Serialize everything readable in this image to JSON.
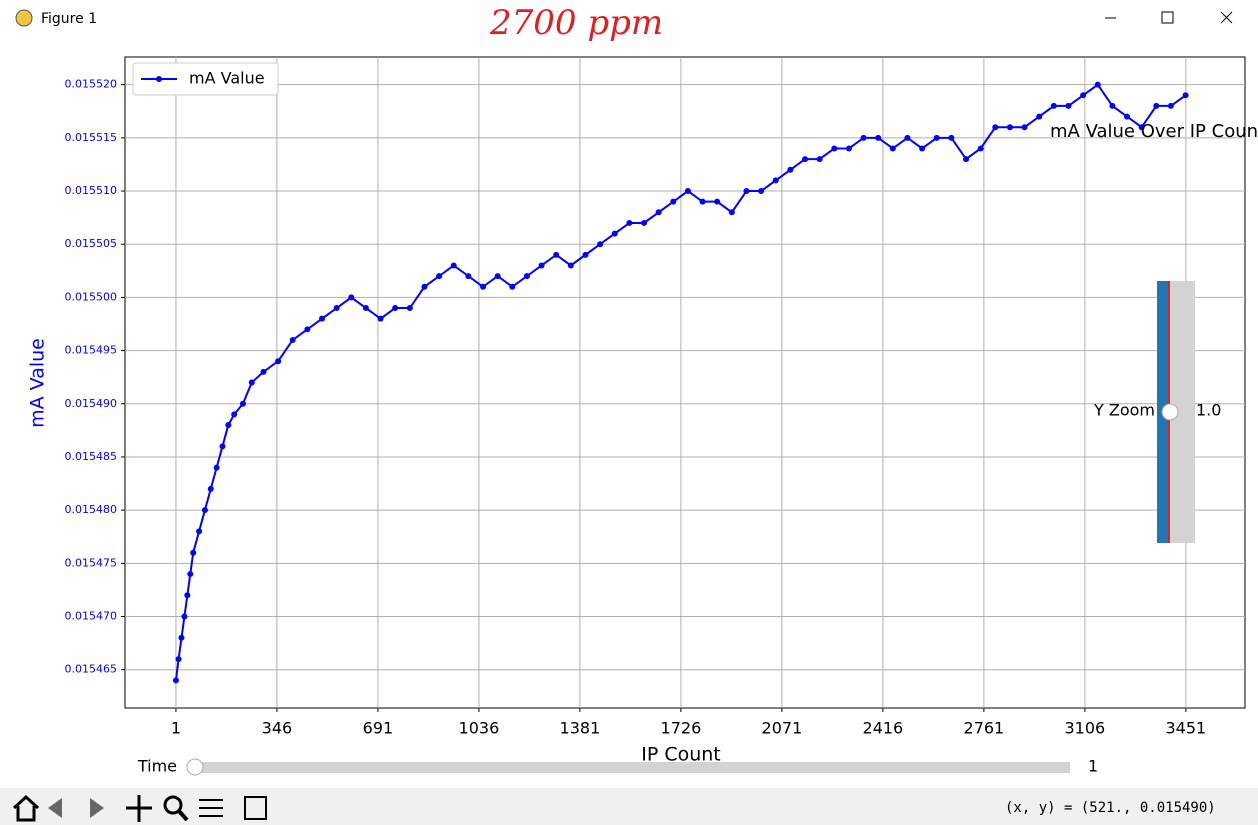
{
  "window": {
    "title": "Figure 1",
    "status": "(x, y) = (521., 0.015490)"
  },
  "annotation": "2700 ppm",
  "sliders": {
    "y_zoom": {
      "label": "Y Zoom",
      "value": "1.0"
    },
    "time": {
      "label": "Time",
      "value": "1"
    }
  },
  "chart_data": {
    "type": "line",
    "title": "mA Value Over IP Count",
    "xlabel": "IP Count",
    "ylabel": "mA Value",
    "x": [
      1,
      10,
      20,
      30,
      40,
      50,
      60,
      80,
      100,
      120,
      140,
      160,
      180,
      200,
      230,
      260,
      300,
      350,
      400,
      450,
      500,
      550,
      600,
      650,
      700,
      750,
      800,
      850,
      900,
      950,
      1000,
      1050,
      1100,
      1150,
      1200,
      1250,
      1300,
      1350,
      1400,
      1450,
      1500,
      1550,
      1600,
      1650,
      1700,
      1750,
      1800,
      1850,
      1900,
      1950,
      2000,
      2050,
      2100,
      2150,
      2200,
      2250,
      2300,
      2350,
      2400,
      2450,
      2500,
      2550,
      2600,
      2650,
      2700,
      2750,
      2800,
      2850,
      2900,
      2950,
      3000,
      3050,
      3100,
      3150,
      3200,
      3250,
      3300,
      3350,
      3400,
      3450
    ],
    "series": [
      {
        "name": "mA Value",
        "color": "#0000ff",
        "values": [
          0.015464,
          0.015466,
          0.015468,
          0.01547,
          0.015472,
          0.015474,
          0.015476,
          0.015478,
          0.01548,
          0.015482,
          0.015484,
          0.015486,
          0.015488,
          0.015489,
          0.01549,
          0.015492,
          0.015493,
          0.015494,
          0.015496,
          0.015497,
          0.015498,
          0.015499,
          0.0155,
          0.015499,
          0.015498,
          0.015499,
          0.015499,
          0.015501,
          0.015502,
          0.015503,
          0.015502,
          0.015501,
          0.015502,
          0.015501,
          0.015502,
          0.015503,
          0.015504,
          0.015503,
          0.015504,
          0.015505,
          0.015506,
          0.015507,
          0.015507,
          0.015508,
          0.015509,
          0.01551,
          0.015509,
          0.015509,
          0.015508,
          0.01551,
          0.01551,
          0.015511,
          0.015512,
          0.015513,
          0.015513,
          0.015514,
          0.015514,
          0.015515,
          0.015515,
          0.015514,
          0.015515,
          0.015514,
          0.015515,
          0.015515,
          0.015513,
          0.015514,
          0.015516,
          0.015516,
          0.015516,
          0.015517,
          0.015518,
          0.015518,
          0.015519,
          0.01552,
          0.015518,
          0.015517,
          0.015516,
          0.015518,
          0.015518,
          0.015519
        ]
      }
    ],
    "xlim": [
      -173,
      3653
    ],
    "xticks": [
      1,
      346,
      691,
      1036,
      1381,
      1726,
      2071,
      2416,
      2761,
      3106,
      3451
    ],
    "ylim": [
      0.0154614,
      0.0155226
    ],
    "yticks": [
      {
        "value": 0.015465,
        "label": "0.015465"
      },
      {
        "value": 0.01547,
        "label": "0.015470"
      },
      {
        "value": 0.015475,
        "label": "0.015475"
      },
      {
        "value": 0.01548,
        "label": "0.015480"
      },
      {
        "value": 0.015485,
        "label": "0.015485"
      },
      {
        "value": 0.01549,
        "label": "0.015490"
      },
      {
        "value": 0.015495,
        "label": "0.015495"
      },
      {
        "value": 0.0155,
        "label": "0.015500"
      },
      {
        "value": 0.015505,
        "label": "0.015505"
      },
      {
        "value": 0.01551,
        "label": "0.015510"
      },
      {
        "value": 0.015515,
        "label": "0.015515"
      },
      {
        "value": 0.01552,
        "label": "0.015520"
      }
    ],
    "grid": true,
    "legend": "upper left"
  }
}
